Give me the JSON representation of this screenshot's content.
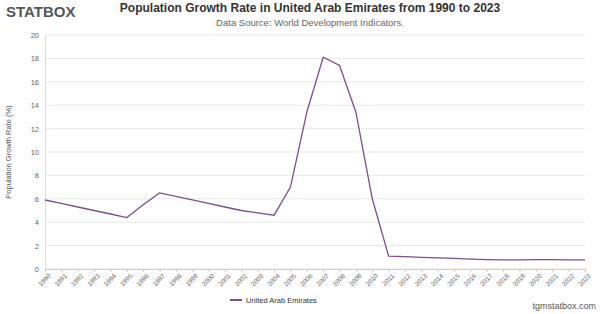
{
  "chart_data": {
    "type": "line",
    "title": "Population Growth Rate in United Arab Emirates from 1990 to 2023",
    "subtitle": "Data Source: World Development Indicators.",
    "annotations": [
      "STATBOX",
      "tgmstatbox.com"
    ],
    "y_label": "Population Growth Rate (%)",
    "categories": [
      "1990",
      "1991",
      "1992",
      "1993",
      "1994",
      "1995",
      "1996",
      "1997",
      "1998",
      "1999",
      "2000",
      "2001",
      "2002",
      "2003",
      "2004",
      "2005",
      "2006",
      "2007",
      "2008",
      "2009",
      "2010",
      "2011",
      "2012",
      "2013",
      "2014",
      "2015",
      "2016",
      "2017",
      "2018",
      "2019",
      "2020",
      "2021",
      "2022",
      "2023"
    ],
    "series": [
      {
        "name": "United Arab Emirates",
        "color": "#7b4f8e",
        "values": [
          5.9,
          5.6,
          5.3,
          5.0,
          4.7,
          4.4,
          5.5,
          6.5,
          6.2,
          5.9,
          5.6,
          5.3,
          5.0,
          4.8,
          4.6,
          7.0,
          13.4,
          18.1,
          17.4,
          13.4,
          6.0,
          1.1,
          1.05,
          1.0,
          0.95,
          0.9,
          0.85,
          0.8,
          0.78,
          0.78,
          0.8,
          0.8,
          0.78,
          0.78
        ]
      }
    ],
    "ylim": [
      0,
      20
    ],
    "yticks": [
      0,
      2,
      4,
      6,
      8,
      10,
      12,
      14,
      16,
      18,
      20
    ],
    "grid": true,
    "legend": "bottom"
  }
}
